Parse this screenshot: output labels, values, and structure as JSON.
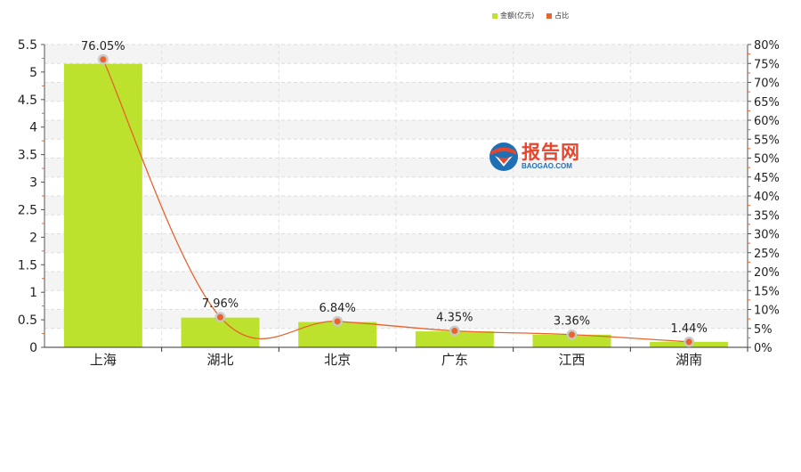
{
  "chart_data": {
    "type": "bar",
    "categories": [
      "上海",
      "湖北",
      "北京",
      "广东",
      "江西",
      "湖南"
    ],
    "series": [
      {
        "name": "金额(亿元)",
        "type": "bar",
        "axis": "left",
        "values": [
          5.15,
          0.54,
          0.46,
          0.29,
          0.23,
          0.1
        ]
      },
      {
        "name": "占比",
        "type": "line",
        "axis": "right",
        "values": [
          76.05,
          7.96,
          6.84,
          4.35,
          3.36,
          1.44
        ],
        "labels": [
          "76.05%",
          "7.96%",
          "6.84%",
          "4.35%",
          "3.36%",
          "1.44%"
        ]
      }
    ],
    "y_left": {
      "min": 0,
      "max": 5.5,
      "ticks": [
        "0",
        "0.5",
        "1",
        "1.5",
        "2",
        "2.5",
        "3",
        "3.5",
        "4",
        "4.5",
        "5",
        "5.5"
      ]
    },
    "y_right": {
      "min": 0,
      "max": 80,
      "ticks": [
        "0%",
        "5%",
        "10%",
        "15%",
        "20%",
        "25%",
        "30%",
        "35%",
        "40%",
        "45%",
        "50%",
        "55%",
        "60%",
        "65%",
        "70%",
        "75%",
        "80%"
      ]
    },
    "legend_position": "top-right",
    "grid": true,
    "colors": {
      "bar": "#bce22e",
      "line": "#e8642c",
      "marker_halo": "#c8c8c8"
    }
  },
  "legend": [
    {
      "label": "金额(亿元)",
      "color": "#bce22e"
    },
    {
      "label": "占比",
      "color": "#e8642c"
    }
  ],
  "watermark": {
    "name_cn": "报告网",
    "name_en": "BAOGAO.COM"
  }
}
